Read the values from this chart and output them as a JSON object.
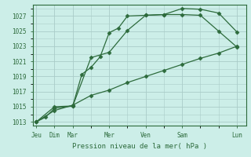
{
  "title": "",
  "xlabel": "Pression niveau de la mer( hPa )",
  "ylabel": "",
  "background_color": "#cceee8",
  "grid_color": "#aaccc8",
  "line_color": "#2d6b3c",
  "ylim": [
    1012.5,
    1028.5
  ],
  "yticks": [
    1013,
    1015,
    1017,
    1019,
    1021,
    1023,
    1025,
    1027
  ],
  "x_tick_labels": [
    "Jeu",
    "Dim",
    "Mar",
    "Mer",
    "Ven",
    "Sam",
    "Lun"
  ],
  "x_tick_positions": [
    0,
    1,
    2,
    4,
    6,
    8,
    11
  ],
  "xlim": [
    -0.2,
    11.5
  ],
  "series1_x": [
    0,
    0.5,
    1,
    2,
    2.5,
    3,
    3.5,
    4,
    4.5,
    5,
    6,
    7,
    8,
    9,
    10,
    11
  ],
  "series1": [
    1013.0,
    1013.6,
    1014.8,
    1015.1,
    1019.3,
    1020.2,
    1021.6,
    1024.8,
    1025.4,
    1027.0,
    1027.1,
    1027.2,
    1027.2,
    1027.1,
    1025.0,
    1022.9
  ],
  "series2_x": [
    0,
    1,
    2,
    3,
    4,
    5,
    6,
    7,
    8,
    9,
    10,
    11
  ],
  "series2": [
    1013.0,
    1015.0,
    1015.1,
    1021.5,
    1022.2,
    1025.1,
    1027.1,
    1027.2,
    1028.0,
    1027.9,
    1027.4,
    1024.9
  ],
  "series3_x": [
    0,
    1,
    2,
    3,
    4,
    5,
    6,
    7,
    8,
    9,
    10,
    11
  ],
  "series3": [
    1013.0,
    1014.5,
    1015.2,
    1016.5,
    1017.2,
    1018.2,
    1019.0,
    1019.8,
    1020.6,
    1021.4,
    1022.1,
    1023.0
  ]
}
